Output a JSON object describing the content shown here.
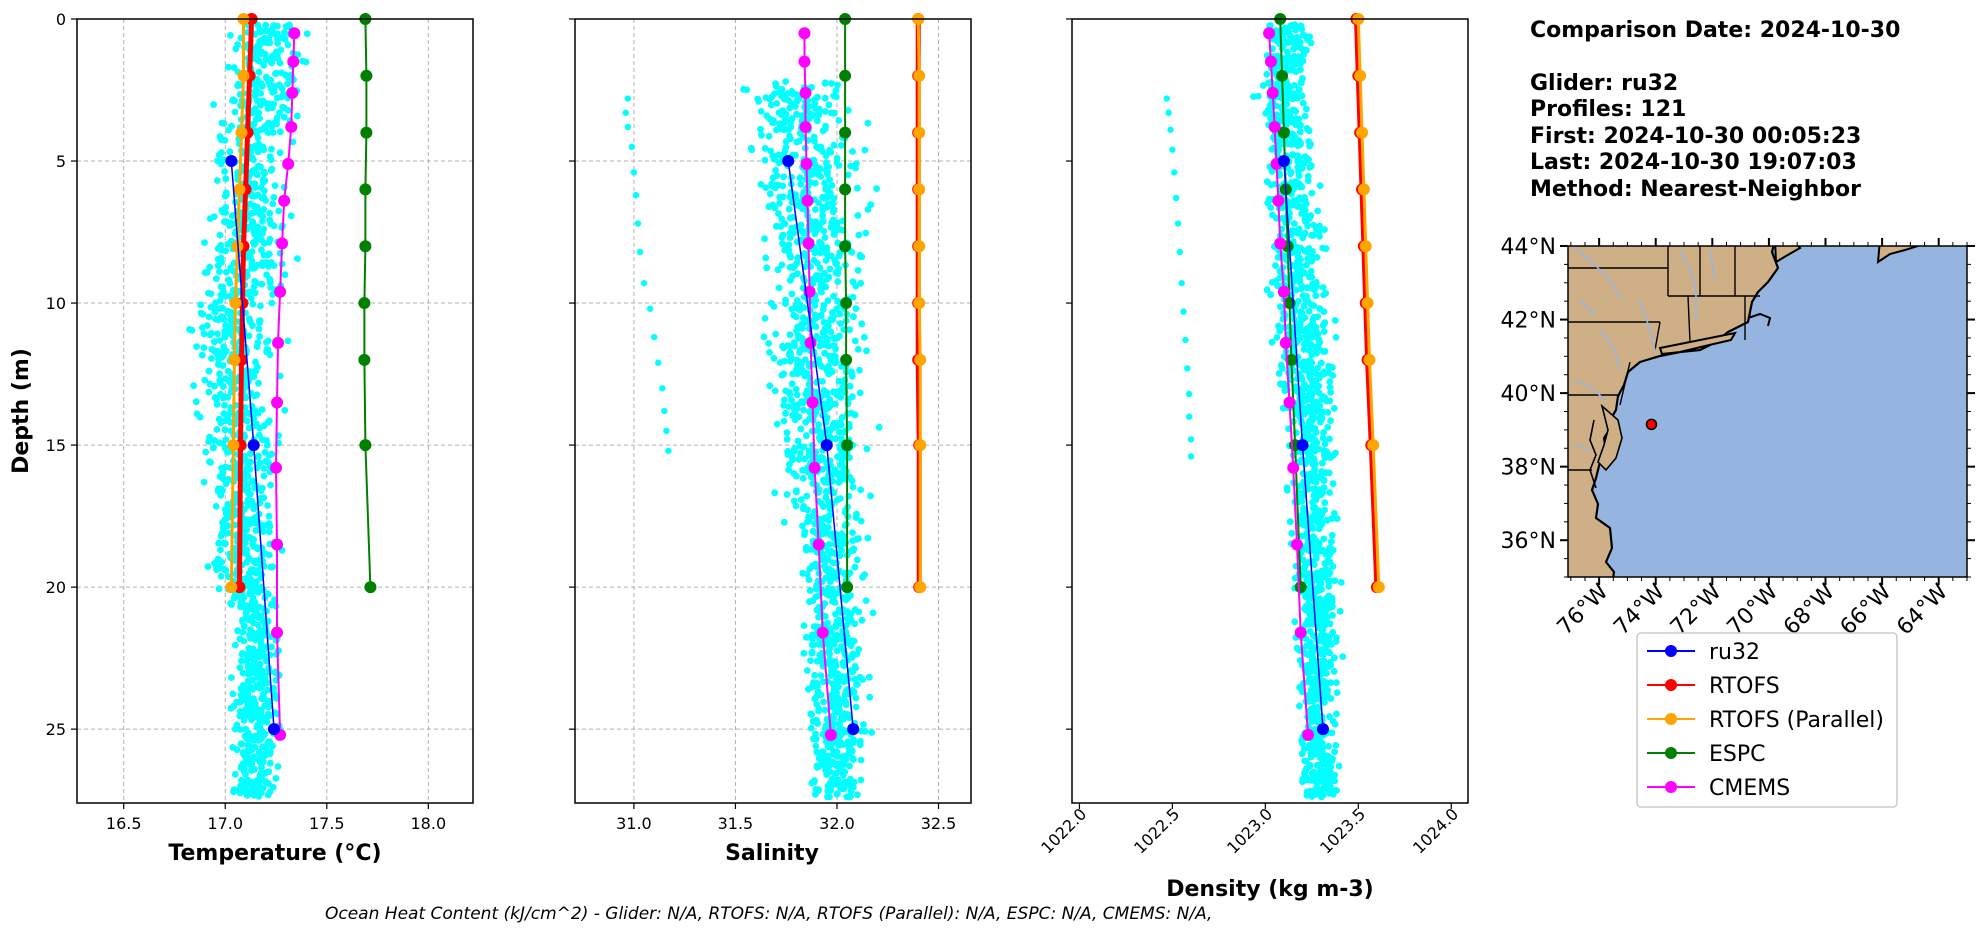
{
  "info": {
    "comparison_date": "Comparison Date: 2024-10-30",
    "glider": "Glider: ru32",
    "profiles": "Profiles: 121",
    "first": "First: 2024-10-30 00:05:23",
    "last": "Last: 2024-10-30 19:07:03",
    "method": "Method: Nearest-Neighbor"
  },
  "footer": "Ocean Heat Content (kJ/cm^2) - Glider: N/A,  RTOFS: N/A,  RTOFS (Parallel): N/A,  ESPC: N/A,  CMEMS: N/A,",
  "colors": {
    "scatter": "#00ffff",
    "ru32": "#0000ff",
    "rtofs": "#ff0000",
    "rtofs_parallel": "#ffa500",
    "espc": "#008000",
    "cmems": "#ff00ff",
    "land": "#cfb086",
    "ocean": "#95b5e0",
    "rivers": "#9bb4df"
  },
  "chart_data": [
    {
      "id": "temperature",
      "type": "line",
      "xlabel": "Temperature (°C)",
      "ylabel": "Depth (m)",
      "xlim": [
        16.27,
        18.22
      ],
      "ylim": [
        27.6,
        0
      ],
      "xticks": [
        "16.5",
        "17.0",
        "17.5",
        "18.0"
      ],
      "xtick_values": [
        16.5,
        17.0,
        17.5,
        18.0
      ],
      "yticks": [
        "0",
        "5",
        "10",
        "15",
        "20",
        "25"
      ],
      "ytick_values": [
        0,
        5,
        10,
        15,
        20,
        25
      ],
      "grid": true,
      "scatter_envelope": {
        "left": [
          [
            0.3,
            17.0
          ],
          [
            2.5,
            16.93
          ],
          [
            5,
            16.88
          ],
          [
            8,
            16.82
          ],
          [
            10,
            16.76
          ],
          [
            12,
            16.78
          ],
          [
            15,
            16.83
          ],
          [
            18,
            16.87
          ],
          [
            20,
            16.92
          ],
          [
            21,
            17.0
          ]
        ],
        "right": [
          [
            2,
            17.43
          ],
          [
            5,
            17.4
          ],
          [
            8,
            17.38
          ],
          [
            10,
            17.36
          ],
          [
            13,
            17.33
          ],
          [
            16,
            17.32
          ],
          [
            19,
            17.31
          ],
          [
            22,
            17.3
          ],
          [
            25,
            17.3
          ],
          [
            27.4,
            17.28
          ]
        ],
        "ymin": 0.2,
        "ymax": 27.4
      },
      "series": [
        {
          "name": "ru32",
          "key": "ru32",
          "width": 1.5,
          "y": [
            5,
            15,
            25
          ],
          "x": [
            17.03,
            17.14,
            17.24
          ]
        },
        {
          "name": "RTOFS",
          "key": "rtofs",
          "width": 5,
          "y": [
            0,
            2,
            4,
            6,
            8,
            10,
            12,
            15,
            20
          ],
          "x": [
            17.13,
            17.12,
            17.11,
            17.1,
            17.09,
            17.085,
            17.08,
            17.075,
            17.07
          ]
        },
        {
          "name": "RTOFS (Parallel)",
          "key": "rtofs_parallel",
          "width": 3,
          "y": [
            0,
            2,
            4,
            6,
            8,
            10,
            12,
            15,
            20
          ],
          "x": [
            17.09,
            17.09,
            17.08,
            17.07,
            17.06,
            17.05,
            17.045,
            17.04,
            17.03
          ]
        },
        {
          "name": "ESPC",
          "key": "espc",
          "width": 2,
          "y": [
            0,
            2,
            4,
            6,
            8,
            10,
            12,
            15,
            20
          ],
          "x": [
            17.69,
            17.695,
            17.695,
            17.69,
            17.69,
            17.685,
            17.685,
            17.69,
            17.715
          ]
        },
        {
          "name": "CMEMS",
          "key": "cmems",
          "width": 2,
          "y": [
            0.5,
            1.5,
            2.6,
            3.8,
            5.1,
            6.4,
            7.9,
            9.6,
            11.4,
            13.5,
            15.8,
            18.5,
            21.6,
            25.2
          ],
          "x": [
            17.34,
            17.335,
            17.33,
            17.325,
            17.31,
            17.29,
            17.28,
            17.27,
            17.26,
            17.255,
            17.25,
            17.255,
            17.255,
            17.27
          ]
        }
      ]
    },
    {
      "id": "salinity",
      "type": "line",
      "xlabel": "Salinity",
      "xlim": [
        30.71,
        32.66
      ],
      "ylim": [
        27.6,
        0
      ],
      "xticks": [
        "31.0",
        "31.5",
        "32.0",
        "32.5"
      ],
      "xtick_values": [
        31.0,
        31.5,
        32.0,
        32.5
      ],
      "grid": true,
      "scatter_envelope": {
        "left": [
          [
            2.5,
            31.45
          ],
          [
            5,
            31.5
          ],
          [
            8,
            31.55
          ],
          [
            11,
            31.58
          ],
          [
            14,
            31.62
          ],
          [
            17,
            31.68
          ],
          [
            20,
            31.75
          ],
          [
            24,
            31.8
          ],
          [
            27.4,
            31.82
          ]
        ],
        "right": [
          [
            2,
            32.17
          ],
          [
            5,
            32.2
          ],
          [
            8,
            32.22
          ],
          [
            11,
            32.22
          ],
          [
            14,
            32.22
          ],
          [
            17,
            32.21
          ],
          [
            20,
            32.2
          ],
          [
            23,
            32.2
          ],
          [
            25.8,
            32.19
          ]
        ],
        "ymin": 2.2,
        "ymax": 27.4
      },
      "outliers": [
        [
          2.8,
          30.97
        ],
        [
          3.3,
          30.96
        ],
        [
          3.8,
          30.97
        ],
        [
          4.5,
          30.99
        ],
        [
          5.4,
          31.0
        ],
        [
          6.2,
          31.01
        ],
        [
          7.2,
          31.02
        ],
        [
          8.2,
          31.03
        ],
        [
          9.3,
          31.05
        ],
        [
          10.2,
          31.08
        ],
        [
          11.2,
          31.1
        ],
        [
          12.1,
          31.12
        ],
        [
          13.0,
          31.14
        ],
        [
          13.8,
          31.15
        ],
        [
          14.5,
          31.16
        ],
        [
          15.2,
          31.17
        ]
      ],
      "series": [
        {
          "name": "ru32",
          "key": "ru32",
          "width": 1.5,
          "y": [
            5,
            15,
            25
          ],
          "x": [
            31.76,
            31.95,
            32.08
          ]
        },
        {
          "name": "RTOFS",
          "key": "rtofs",
          "width": 5,
          "y": [
            0,
            2,
            4,
            6,
            8,
            10,
            12,
            15,
            20
          ],
          "x": [
            32.4,
            32.4,
            32.4,
            32.4,
            32.4,
            32.4,
            32.4,
            32.405,
            32.405
          ]
        },
        {
          "name": "RTOFS (Parallel)",
          "key": "rtofs_parallel",
          "width": 3,
          "y": [
            0,
            2,
            4,
            6,
            8,
            10,
            12,
            15,
            20
          ],
          "x": [
            32.4,
            32.405,
            32.405,
            32.405,
            32.405,
            32.405,
            32.41,
            32.41,
            32.41
          ]
        },
        {
          "name": "ESPC",
          "key": "espc",
          "width": 2,
          "y": [
            0,
            2,
            4,
            6,
            8,
            10,
            12,
            15,
            20
          ],
          "x": [
            32.04,
            32.04,
            32.04,
            32.04,
            32.04,
            32.045,
            32.045,
            32.05,
            32.05
          ]
        },
        {
          "name": "CMEMS",
          "key": "cmems",
          "width": 2,
          "y": [
            0.5,
            1.5,
            2.6,
            3.8,
            5.1,
            6.4,
            7.9,
            9.6,
            11.4,
            13.5,
            15.8,
            18.5,
            21.6,
            25.2
          ],
          "x": [
            31.84,
            31.84,
            31.845,
            31.845,
            31.85,
            31.855,
            31.86,
            31.865,
            31.87,
            31.88,
            31.89,
            31.91,
            31.93,
            31.97
          ]
        }
      ]
    },
    {
      "id": "density",
      "type": "line",
      "xlabel": "Density (kg m-3)",
      "xlim": [
        1021.96,
        1024.09
      ],
      "ylim": [
        27.6,
        0
      ],
      "xticks": [
        "1022.0",
        "1022.5",
        "1023.0",
        "1023.5",
        "1024.0"
      ],
      "xtick_values": [
        1022.0,
        1022.5,
        1023.0,
        1023.5,
        1024.0
      ],
      "grid": false,
      "scatter_envelope": {
        "left": [
          [
            0.3,
            1022.97
          ],
          [
            3,
            1022.88
          ],
          [
            6,
            1022.95
          ],
          [
            10,
            1023.0
          ],
          [
            14,
            1023.05
          ],
          [
            18,
            1023.1
          ],
          [
            22,
            1023.13
          ],
          [
            27.4,
            1023.15
          ]
        ],
        "right": [
          [
            2,
            1023.3
          ],
          [
            5,
            1023.33
          ],
          [
            8,
            1023.37
          ],
          [
            11,
            1023.4
          ],
          [
            14,
            1023.42
          ],
          [
            17,
            1023.43
          ],
          [
            20,
            1023.44
          ],
          [
            23,
            1023.44
          ],
          [
            25.8,
            1023.43
          ]
        ],
        "ymin": 0.2,
        "ymax": 27.4
      },
      "outliers": [
        [
          2.8,
          1022.47
        ],
        [
          3.3,
          1022.48
        ],
        [
          3.9,
          1022.49
        ],
        [
          4.6,
          1022.5
        ],
        [
          5.4,
          1022.51
        ],
        [
          6.3,
          1022.52
        ],
        [
          7.2,
          1022.53
        ],
        [
          8.2,
          1022.54
        ],
        [
          9.3,
          1022.55
        ],
        [
          10.3,
          1022.56
        ],
        [
          11.3,
          1022.57
        ],
        [
          12.3,
          1022.58
        ],
        [
          13.2,
          1022.59
        ],
        [
          14.0,
          1022.59
        ],
        [
          14.8,
          1022.6
        ],
        [
          15.4,
          1022.6
        ]
      ],
      "series": [
        {
          "name": "ru32",
          "key": "ru32",
          "width": 1.5,
          "y": [
            5,
            15,
            25
          ],
          "x": [
            1023.1,
            1023.2,
            1023.31
          ]
        },
        {
          "name": "RTOFS",
          "key": "rtofs",
          "width": 5,
          "y": [
            0,
            2,
            4,
            6,
            8,
            10,
            12,
            15,
            20
          ],
          "x": [
            1023.49,
            1023.5,
            1023.51,
            1023.52,
            1023.53,
            1023.54,
            1023.55,
            1023.57,
            1023.6
          ]
        },
        {
          "name": "RTOFS (Parallel)",
          "key": "rtofs_parallel",
          "width": 3,
          "y": [
            0,
            2,
            4,
            6,
            8,
            10,
            12,
            15,
            20
          ],
          "x": [
            1023.5,
            1023.51,
            1023.52,
            1023.53,
            1023.54,
            1023.55,
            1023.56,
            1023.58,
            1023.61
          ]
        },
        {
          "name": "ESPC",
          "key": "espc",
          "width": 2,
          "y": [
            0,
            2,
            4,
            6,
            8,
            10,
            12,
            15,
            20
          ],
          "x": [
            1023.08,
            1023.09,
            1023.1,
            1023.11,
            1023.12,
            1023.13,
            1023.14,
            1023.16,
            1023.19
          ]
        },
        {
          "name": "CMEMS",
          "key": "cmems",
          "width": 2,
          "y": [
            0.5,
            1.5,
            2.6,
            3.8,
            5.1,
            6.4,
            7.9,
            9.6,
            11.4,
            13.5,
            15.8,
            18.5,
            21.6,
            25.2
          ],
          "x": [
            1023.02,
            1023.03,
            1023.04,
            1023.05,
            1023.06,
            1023.07,
            1023.08,
            1023.1,
            1023.11,
            1023.13,
            1023.15,
            1023.17,
            1023.19,
            1023.23
          ]
        }
      ]
    },
    {
      "id": "map",
      "type": "map",
      "lon_ticks": [
        "76°W",
        "74°W",
        "72°W",
        "70°W",
        "68°W",
        "66°W",
        "64°W"
      ],
      "lon_values": [
        -76,
        -74,
        -72,
        -70,
        -68,
        -66,
        -64
      ],
      "lat_ticks": [
        "44°N",
        "42°N",
        "40°N",
        "38°N",
        "36°N"
      ],
      "lat_values": [
        44,
        42,
        40,
        38,
        36
      ],
      "lonlim": [
        -77.1,
        -63.0
      ],
      "latlim": [
        35.0,
        44.0
      ],
      "glider_position": {
        "lon": -74.15,
        "lat": 39.15
      }
    }
  ],
  "legend": [
    {
      "label": "ru32",
      "key": "ru32"
    },
    {
      "label": "RTOFS",
      "key": "rtofs"
    },
    {
      "label": "RTOFS (Parallel)",
      "key": "rtofs_parallel"
    },
    {
      "label": "ESPC",
      "key": "espc"
    },
    {
      "label": "CMEMS",
      "key": "cmems"
    }
  ]
}
